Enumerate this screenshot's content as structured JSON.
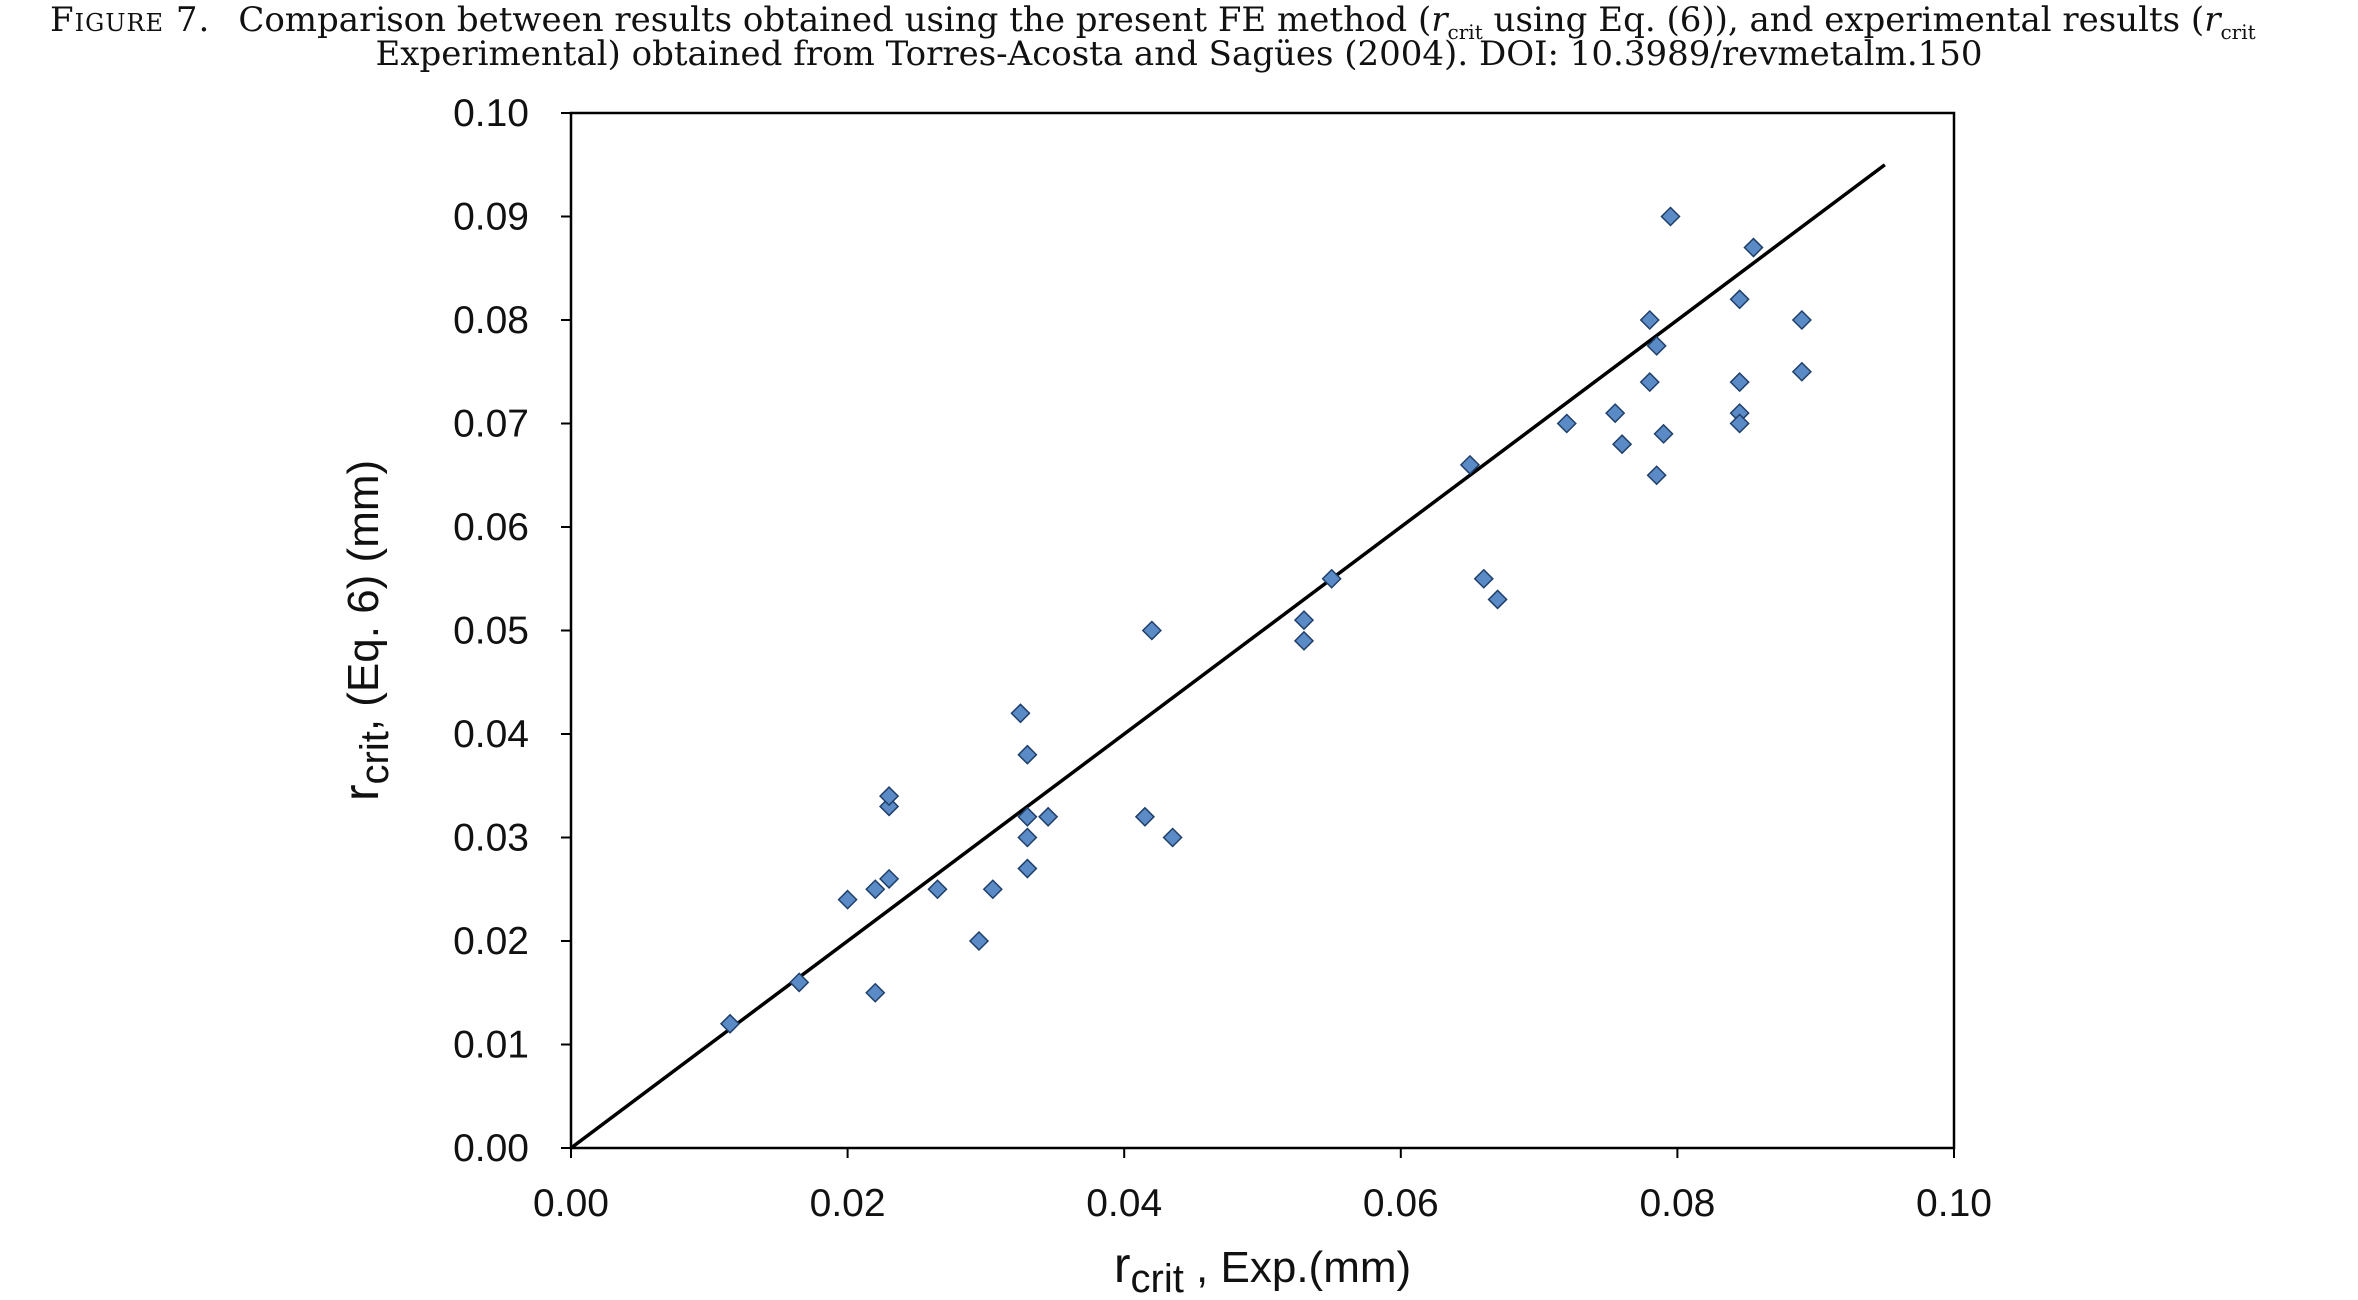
{
  "caption": {
    "figure_label": "Figure 7.",
    "line1_a": "Comparison between results obtained using the present FE method (",
    "r1": "r",
    "sub1": "crit",
    "line1_b": " using Eq. (6)), and experimental results (",
    "r2": "r",
    "sub2": "crit",
    "line2": "Experimental) obtained from Torres-Acosta and Sagües (2004). DOI: 10.3989/revmetalm.150"
  },
  "chart_data": {
    "type": "scatter",
    "xlabel_main": "r",
    "xlabel_sub": "crit",
    "xlabel_rest": " , Exp.(mm)",
    "ylabel_main": "r",
    "ylabel_sub": "crit",
    "ylabel_rest": ", (Eq. 6) (mm)",
    "xlim": [
      0,
      0.1
    ],
    "ylim": [
      0,
      0.1
    ],
    "xticks": [
      "0.00",
      "0.02",
      "0.04",
      "0.06",
      "0.08",
      "0.10"
    ],
    "yticks": [
      "0.00",
      "0.01",
      "0.02",
      "0.03",
      "0.04",
      "0.05",
      "0.06",
      "0.07",
      "0.08",
      "0.09",
      "0.10"
    ],
    "grid": false,
    "marker_color": "#5B8BC6",
    "marker_edge": "#1F3F6A",
    "line": {
      "x": [
        0,
        0.095
      ],
      "y": [
        0,
        0.095
      ],
      "color": "#000000"
    },
    "points": [
      [
        0.0115,
        0.012
      ],
      [
        0.0165,
        0.016
      ],
      [
        0.02,
        0.024
      ],
      [
        0.022,
        0.025
      ],
      [
        0.022,
        0.015
      ],
      [
        0.023,
        0.033
      ],
      [
        0.023,
        0.034
      ],
      [
        0.023,
        0.026
      ],
      [
        0.0265,
        0.025
      ],
      [
        0.0295,
        0.02
      ],
      [
        0.0305,
        0.025
      ],
      [
        0.0325,
        0.042
      ],
      [
        0.033,
        0.038
      ],
      [
        0.033,
        0.032
      ],
      [
        0.033,
        0.03
      ],
      [
        0.033,
        0.027
      ],
      [
        0.0345,
        0.032
      ],
      [
        0.0415,
        0.032
      ],
      [
        0.042,
        0.05
      ],
      [
        0.0435,
        0.03
      ],
      [
        0.053,
        0.051
      ],
      [
        0.053,
        0.049
      ],
      [
        0.055,
        0.055
      ],
      [
        0.065,
        0.066
      ],
      [
        0.066,
        0.055
      ],
      [
        0.067,
        0.053
      ],
      [
        0.072,
        0.07
      ],
      [
        0.0755,
        0.071
      ],
      [
        0.076,
        0.068
      ],
      [
        0.078,
        0.08
      ],
      [
        0.078,
        0.074
      ],
      [
        0.0785,
        0.0775
      ],
      [
        0.0785,
        0.065
      ],
      [
        0.079,
        0.069
      ],
      [
        0.0795,
        0.09
      ],
      [
        0.0845,
        0.082
      ],
      [
        0.0845,
        0.074
      ],
      [
        0.0845,
        0.071
      ],
      [
        0.0845,
        0.07
      ],
      [
        0.0855,
        0.087
      ],
      [
        0.089,
        0.08
      ],
      [
        0.089,
        0.075
      ]
    ]
  }
}
